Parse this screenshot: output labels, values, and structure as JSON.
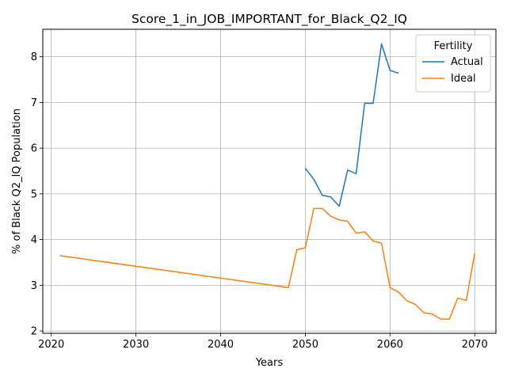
{
  "chart_data": {
    "type": "line",
    "title": "Score_1_in_JOB_IMPORTANT_for_Black_Q2_IQ",
    "xlabel": "Years",
    "ylabel": "% of Black Q2_IQ Population",
    "xlim": [
      2019,
      2072.5
    ],
    "ylim": [
      1.95,
      8.6
    ],
    "xticks": [
      2020,
      2030,
      2040,
      2050,
      2060,
      2070
    ],
    "yticks": [
      2,
      3,
      4,
      5,
      6,
      7,
      8
    ],
    "grid": true,
    "legend": {
      "title": "Fertility",
      "placement": "top-right"
    },
    "series": [
      {
        "name": "Actual",
        "color": "#1f77b4",
        "x": [
          2050,
          2051,
          2052,
          2053,
          2054,
          2055,
          2056,
          2057,
          2058,
          2059,
          2060,
          2061
        ],
        "y": [
          5.56,
          5.32,
          4.97,
          4.93,
          4.73,
          5.52,
          5.44,
          6.98,
          6.98,
          8.28,
          7.7,
          7.64
        ]
      },
      {
        "name": "Ideal",
        "color": "#ff7f0e",
        "x": [
          2021,
          2048,
          2049,
          2050,
          2051,
          2052,
          2053,
          2054,
          2055,
          2056,
          2057,
          2058,
          2059,
          2060,
          2061,
          2062,
          2063,
          2064,
          2065,
          2066,
          2067,
          2068,
          2069,
          2070
        ],
        "y": [
          3.65,
          2.95,
          3.78,
          3.82,
          4.68,
          4.68,
          4.51,
          4.43,
          4.4,
          4.14,
          4.17,
          3.97,
          3.92,
          2.95,
          2.85,
          2.66,
          2.58,
          2.4,
          2.37,
          2.26,
          2.26,
          2.72,
          2.67,
          3.7
        ]
      }
    ]
  }
}
